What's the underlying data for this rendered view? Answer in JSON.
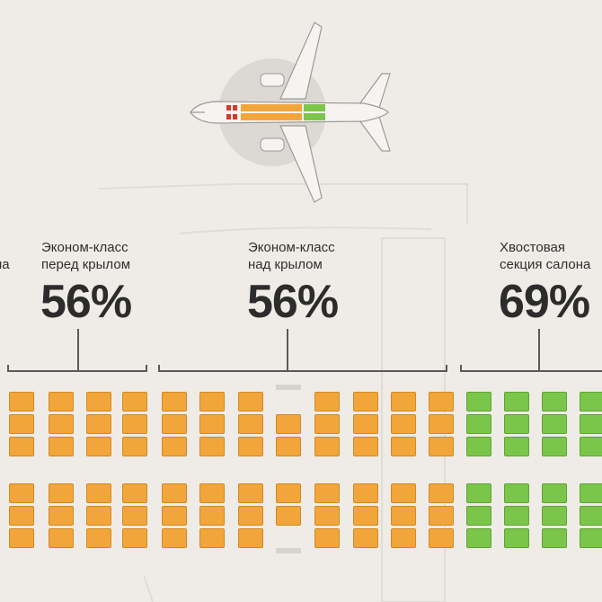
{
  "sections": [
    {
      "label_line1": "",
      "label_line2": "на",
      "percent": ""
    },
    {
      "label_line1": "Эконом-класс",
      "label_line2": "перед крылом",
      "percent": "56%"
    },
    {
      "label_line1": "Эконом-класс",
      "label_line2": "над крылом",
      "percent": "56%"
    },
    {
      "label_line1": "Хвостовая",
      "label_line2": "секция салона",
      "percent": "69%"
    }
  ],
  "colors": {
    "orange": "#f2a53a",
    "green": "#7cc54b",
    "red": "#d23c2e",
    "background": "#efece7"
  }
}
